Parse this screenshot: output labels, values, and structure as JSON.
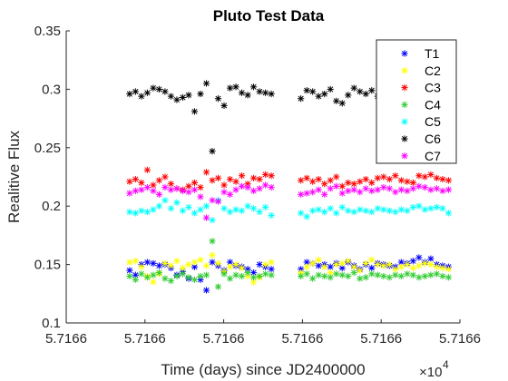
{
  "chart_data": {
    "type": "scatter",
    "title": "Pluto Test Data",
    "xlabel": "Time (days) since JD2400000",
    "ylabel": "Realitive Flux",
    "x_exponent_label": "×10",
    "x_exponent_power": "4",
    "xlim": [
      0,
      1
    ],
    "ylim": [
      0.1,
      0.35
    ],
    "x_tick_values": [
      0,
      0.2,
      0.4,
      0.6,
      0.8,
      1.0
    ],
    "x_tick_labels": [
      "5.7166",
      "5.7166",
      "5.7166",
      "5.7166",
      "5.7166",
      "5.7166"
    ],
    "y_ticks": [
      0.1,
      0.15,
      0.2,
      0.25,
      0.3,
      0.35
    ],
    "y_tick_labels": [
      "0.1",
      "0.15",
      "0.2",
      "0.25",
      "0.3",
      "0.35"
    ],
    "legend_position": "top-right",
    "marker": "*",
    "x": [
      0.161,
      0.176,
      0.191,
      0.206,
      0.221,
      0.236,
      0.251,
      0.266,
      0.281,
      0.296,
      0.311,
      0.326,
      0.341,
      0.356,
      0.371,
      0.386,
      0.401,
      0.416,
      0.431,
      0.446,
      0.461,
      0.476,
      0.491,
      0.506,
      0.521,
      0.536,
      0.551,
      0.566,
      0.581,
      0.596,
      0.611,
      0.626,
      0.641,
      0.656,
      0.671,
      0.686,
      0.701,
      0.716,
      0.731,
      0.746,
      0.761,
      0.776,
      0.791,
      0.806,
      0.821,
      0.836,
      0.851,
      0.866,
      0.881,
      0.896,
      0.911,
      0.926,
      0.941,
      0.956,
      0.971
    ],
    "series": [
      {
        "name": "T1",
        "color": "#0000ff",
        "values": [
          0.145,
          0.141,
          0.15,
          0.152,
          0.151,
          0.149,
          0.15,
          0.147,
          0.141,
          0.144,
          0.138,
          0.148,
          0.137,
          0.128,
          0.152,
          0.149,
          0.145,
          0.152,
          0.149,
          0.148,
          0.146,
          0.143,
          0.15,
          0.148,
          0.146,
          null,
          null,
          null,
          null,
          0.146,
          0.152,
          0.151,
          0.149,
          0.15,
          0.148,
          0.151,
          0.147,
          0.152,
          0.149,
          0.146,
          0.15,
          0.147,
          0.151,
          0.15,
          0.149,
          0.148,
          0.152,
          0.151,
          0.153,
          0.156,
          0.152,
          0.155,
          0.15,
          0.149,
          0.148
        ]
      },
      {
        "name": "C2",
        "color": "#ffff00",
        "values": [
          0.152,
          0.153,
          0.148,
          0.14,
          0.135,
          0.142,
          0.151,
          0.149,
          0.153,
          0.147,
          0.15,
          0.152,
          0.154,
          0.149,
          0.158,
          0.151,
          0.144,
          0.148,
          0.15,
          0.147,
          0.14,
          0.135,
          0.139,
          0.15,
          0.152,
          null,
          null,
          null,
          null,
          0.143,
          0.148,
          0.151,
          0.154,
          0.148,
          0.143,
          0.15,
          0.151,
          0.153,
          0.148,
          0.145,
          0.151,
          0.154,
          0.15,
          0.149,
          0.15,
          0.146,
          0.148,
          0.15,
          0.147,
          0.149,
          0.151,
          0.15,
          0.148,
          0.147,
          0.146
        ]
      },
      {
        "name": "C3",
        "color": "#ff0000",
        "values": [
          0.221,
          0.223,
          0.22,
          0.231,
          0.218,
          0.222,
          0.225,
          0.219,
          0.215,
          0.214,
          0.217,
          0.22,
          0.216,
          0.229,
          0.222,
          0.224,
          0.218,
          0.223,
          0.221,
          0.226,
          0.219,
          0.224,
          0.223,
          0.227,
          0.226,
          null,
          null,
          null,
          null,
          0.222,
          0.224,
          0.221,
          0.223,
          0.219,
          0.222,
          0.225,
          0.217,
          0.22,
          0.219,
          0.221,
          0.223,
          0.22,
          0.224,
          0.225,
          0.223,
          0.226,
          0.222,
          0.221,
          0.22,
          0.226,
          0.225,
          0.227,
          0.224,
          0.223,
          0.222
        ]
      },
      {
        "name": "C4",
        "color": "#33cc33",
        "values": [
          0.14,
          0.137,
          0.142,
          0.139,
          0.141,
          0.143,
          0.138,
          0.136,
          0.14,
          0.142,
          0.139,
          0.137,
          0.14,
          0.141,
          0.17,
          0.131,
          0.142,
          0.138,
          0.141,
          0.14,
          0.143,
          0.139,
          0.14,
          0.142,
          0.141,
          null,
          null,
          null,
          null,
          0.14,
          0.142,
          0.138,
          0.141,
          0.14,
          0.139,
          0.142,
          0.141,
          0.14,
          0.143,
          0.138,
          0.139,
          0.142,
          0.141,
          0.14,
          0.139,
          0.141,
          0.14,
          0.142,
          0.141,
          0.139,
          0.14,
          0.141,
          0.142,
          0.14,
          0.139
        ]
      },
      {
        "name": "C5",
        "color": "#00ffff",
        "values": [
          0.195,
          0.194,
          0.196,
          0.195,
          0.197,
          0.2,
          0.205,
          0.198,
          0.203,
          0.196,
          0.199,
          0.194,
          0.197,
          0.2,
          0.188,
          0.205,
          0.198,
          0.195,
          0.197,
          0.196,
          0.2,
          0.198,
          0.195,
          0.199,
          0.192,
          null,
          null,
          null,
          null,
          0.194,
          0.191,
          0.196,
          0.197,
          0.195,
          0.198,
          0.194,
          0.199,
          0.196,
          0.195,
          0.197,
          0.196,
          0.195,
          0.198,
          0.197,
          0.196,
          0.195,
          0.197,
          0.196,
          0.199,
          0.2,
          0.197,
          0.198,
          0.199,
          0.198,
          0.194
        ]
      },
      {
        "name": "C6",
        "color": "#000000",
        "values": [
          0.296,
          0.298,
          0.294,
          0.297,
          0.301,
          0.3,
          0.298,
          0.294,
          0.291,
          0.293,
          0.295,
          0.281,
          0.296,
          0.305,
          0.247,
          0.292,
          0.286,
          0.301,
          0.302,
          0.297,
          0.295,
          0.302,
          0.298,
          0.297,
          0.296,
          null,
          null,
          null,
          null,
          0.292,
          0.299,
          0.298,
          0.294,
          0.296,
          0.3,
          0.29,
          0.288,
          0.295,
          0.301,
          0.298,
          0.296,
          0.299,
          0.294,
          0.296,
          0.303,
          0.298,
          0.297,
          0.301,
          0.299,
          0.296,
          0.293,
          0.297,
          0.298,
          0.296,
          0.297
        ]
      },
      {
        "name": "C7",
        "color": "#ff00ff",
        "values": [
          0.211,
          0.213,
          0.214,
          0.216,
          0.213,
          0.21,
          0.216,
          0.214,
          0.215,
          0.213,
          0.212,
          0.214,
          0.208,
          0.19,
          0.205,
          0.204,
          0.212,
          0.21,
          0.214,
          0.217,
          0.216,
          0.213,
          0.215,
          0.218,
          0.216,
          null,
          null,
          null,
          null,
          0.21,
          0.211,
          0.212,
          0.214,
          0.21,
          0.215,
          0.217,
          0.211,
          0.213,
          0.214,
          0.212,
          0.215,
          0.213,
          0.214,
          0.216,
          0.215,
          0.212,
          0.214,
          0.213,
          0.215,
          0.217,
          0.216,
          0.214,
          0.215,
          0.213,
          0.214
        ]
      }
    ]
  }
}
